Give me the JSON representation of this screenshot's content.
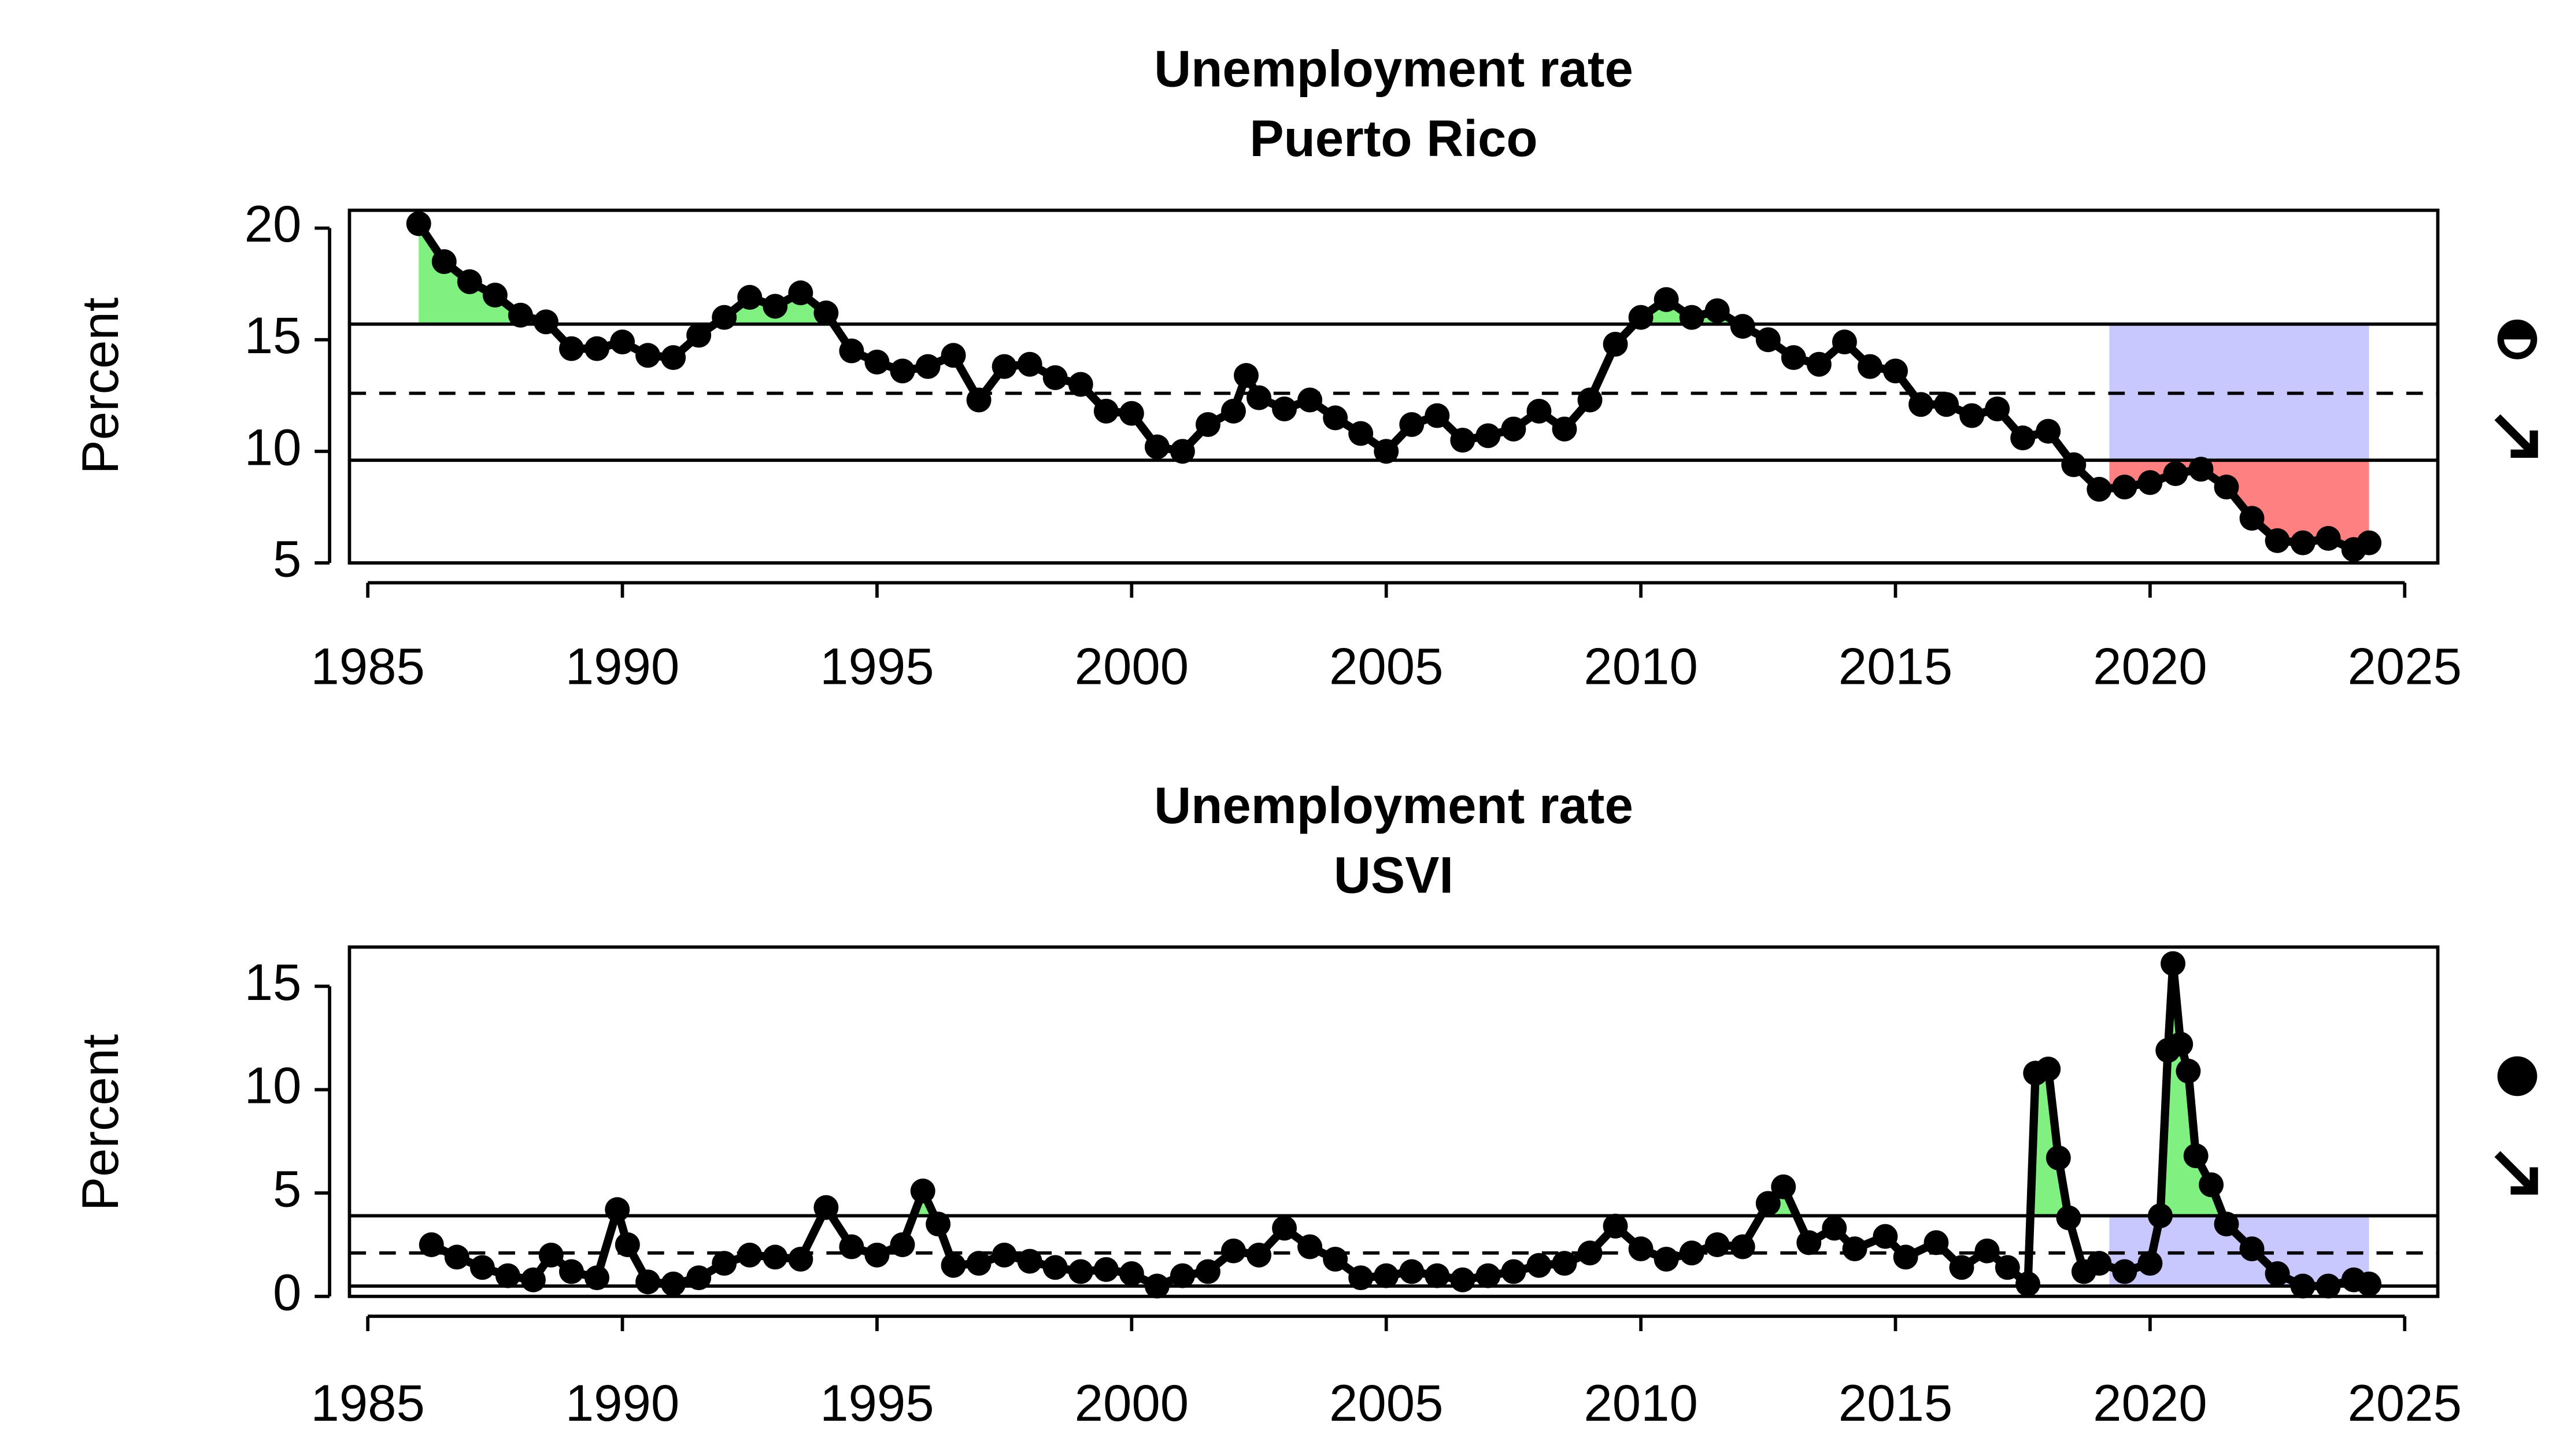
{
  "chart_data": [
    {
      "type": "line",
      "title": "Unemployment rate",
      "subtitle": "Puerto Rico",
      "ylabel": "Percent",
      "xlim": [
        1984.64,
        2025.65
      ],
      "ylim": [
        5,
        20.8
      ],
      "xticks": [
        1985,
        1990,
        1995,
        2000,
        2005,
        2010,
        2015,
        2020,
        2025
      ],
      "yticks": [
        5,
        10,
        15,
        20
      ],
      "reference_lines": {
        "upper": 15.7,
        "mean": 12.6,
        "lower": 9.6
      },
      "highlight_x": [
        2019.2,
        2024.3
      ],
      "highlight_color": "#c8c8ff",
      "above_color": "#80f080",
      "below_color": "#ff8080",
      "series": [
        {
          "color": "#000000",
          "x": [
            1986.0,
            1986.5,
            1987.0,
            1987.5,
            1988.0,
            1988.5,
            1989.0,
            1989.5,
            1990.0,
            1990.5,
            1991.0,
            1991.5,
            1992.0,
            1992.5,
            1993.0,
            1993.5,
            1994.0,
            1994.5,
            1995.0,
            1995.5,
            1996.0,
            1996.5,
            1997.0,
            1997.5,
            1998.0,
            1998.5,
            1999.0,
            1999.5,
            2000.0,
            2000.5,
            2001.0,
            2001.5,
            2002.0,
            2002.25,
            2002.5,
            2003.0,
            2003.5,
            2004.0,
            2004.5,
            2005.0,
            2005.5,
            2006.0,
            2006.5,
            2007.0,
            2007.5,
            2008.0,
            2008.5,
            2009.0,
            2009.5,
            2010.0,
            2010.5,
            2011.0,
            2011.5,
            2012.0,
            2012.5,
            2013.0,
            2013.5,
            2014.0,
            2014.5,
            2015.0,
            2015.5,
            2016.0,
            2016.5,
            2017.0,
            2017.5,
            2018.0,
            2018.5,
            2019.0,
            2019.5,
            2020.0,
            2020.5,
            2021.0,
            2021.5,
            2022.0,
            2022.5,
            2023.0,
            2023.5,
            2024.0,
            2024.3
          ],
          "values": [
            20.2,
            18.5,
            17.6,
            17.0,
            16.1,
            15.8,
            14.6,
            14.6,
            14.9,
            14.3,
            14.2,
            15.2,
            16.0,
            16.9,
            16.5,
            17.1,
            16.2,
            14.5,
            14.0,
            13.6,
            13.8,
            14.3,
            12.3,
            13.8,
            13.9,
            13.3,
            13.0,
            11.8,
            11.7,
            10.2,
            10.0,
            11.2,
            11.8,
            13.4,
            12.4,
            11.9,
            12.3,
            11.5,
            10.8,
            10.0,
            11.2,
            11.6,
            10.5,
            10.7,
            11.0,
            11.8,
            11.0,
            12.3,
            14.8,
            16.0,
            16.8,
            16.0,
            16.3,
            15.6,
            15.0,
            14.2,
            13.9,
            14.9,
            13.8,
            13.6,
            12.1,
            12.1,
            11.6,
            11.9,
            10.6,
            10.9,
            9.4,
            8.3,
            8.4,
            8.6,
            9.0,
            9.2,
            8.4,
            7.0,
            6.0,
            5.9,
            6.1,
            5.6,
            5.9
          ]
        }
      ]
    },
    {
      "type": "line",
      "title": "Unemployment rate",
      "subtitle": "USVI",
      "ylabel": "Percent",
      "xlim": [
        1984.64,
        2025.65
      ],
      "ylim": [
        0,
        16.9
      ],
      "xticks": [
        1985,
        1990,
        1995,
        2000,
        2005,
        2010,
        2015,
        2020,
        2025
      ],
      "yticks": [
        0,
        5,
        10,
        15
      ],
      "reference_lines": {
        "upper": 3.9,
        "mean": 2.1,
        "lower": 0.5
      },
      "highlight_x": [
        2019.2,
        2024.3
      ],
      "highlight_color": "#c8c8ff",
      "above_color": "#80f080",
      "below_color": "#ff8080",
      "series": [
        {
          "color": "#000000",
          "x": [
            1986.25,
            1986.75,
            1987.25,
            1987.75,
            1988.25,
            1988.6,
            1989.0,
            1989.5,
            1989.9,
            1990.1,
            1990.5,
            1991.0,
            1991.5,
            1992.0,
            1992.5,
            1993.0,
            1993.5,
            1994.0,
            1994.5,
            1995.0,
            1995.5,
            1995.9,
            1996.2,
            1996.5,
            1997.0,
            1997.5,
            1998.0,
            1998.5,
            1999.0,
            1999.5,
            2000.0,
            2000.5,
            2001.0,
            2001.5,
            2002.0,
            2002.5,
            2003.0,
            2003.5,
            2004.0,
            2004.5,
            2005.0,
            2005.5,
            2006.0,
            2006.5,
            2007.0,
            2007.5,
            2008.0,
            2008.5,
            2009.0,
            2009.5,
            2010.0,
            2010.5,
            2011.0,
            2011.5,
            2012.0,
            2012.5,
            2012.8,
            2013.3,
            2013.8,
            2014.2,
            2014.8,
            2015.2,
            2015.8,
            2016.3,
            2016.8,
            2017.2,
            2017.6,
            2017.75,
            2018.0,
            2018.2,
            2018.4,
            2018.7,
            2019.0,
            2019.5,
            2020.0,
            2020.2,
            2020.35,
            2020.45,
            2020.6,
            2020.75,
            2020.9,
            2021.2,
            2021.5,
            2022.0,
            2022.5,
            2023.0,
            2023.5,
            2024.0,
            2024.3
          ],
          "values": [
            2.5,
            1.9,
            1.4,
            1.0,
            0.8,
            2.0,
            1.2,
            0.9,
            4.2,
            2.5,
            0.7,
            0.6,
            0.9,
            1.6,
            2.0,
            1.9,
            1.8,
            4.3,
            2.4,
            2.0,
            2.5,
            5.1,
            3.5,
            1.5,
            1.6,
            2.0,
            1.7,
            1.4,
            1.2,
            1.3,
            1.1,
            0.5,
            1.0,
            1.2,
            2.2,
            2.0,
            3.3,
            2.4,
            1.8,
            0.9,
            1.0,
            1.2,
            1.0,
            0.8,
            1.0,
            1.2,
            1.5,
            1.6,
            2.1,
            3.4,
            2.3,
            1.8,
            2.1,
            2.5,
            2.4,
            4.5,
            5.3,
            2.6,
            3.3,
            2.3,
            2.9,
            1.9,
            2.6,
            1.4,
            2.2,
            1.4,
            0.6,
            10.8,
            11.0,
            6.7,
            3.8,
            1.2,
            1.6,
            1.2,
            1.6,
            3.9,
            11.9,
            16.1,
            12.2,
            10.9,
            6.8,
            5.4,
            3.5,
            2.3,
            1.1,
            0.5,
            0.5,
            0.8,
            0.6
          ]
        }
      ]
    }
  ]
}
